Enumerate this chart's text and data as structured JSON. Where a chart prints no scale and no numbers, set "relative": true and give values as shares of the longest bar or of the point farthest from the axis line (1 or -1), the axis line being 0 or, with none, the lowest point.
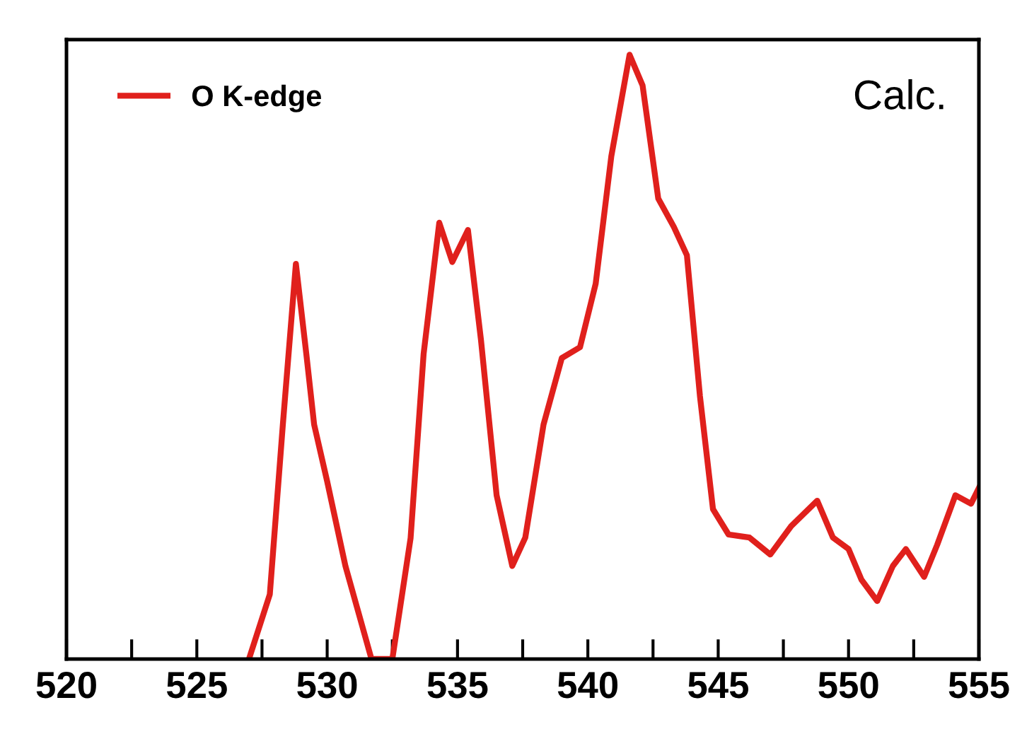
{
  "chart_data": {
    "type": "line",
    "relative": true,
    "xlim": [
      520,
      555
    ],
    "xticks": [
      520,
      {
        "value": 522.5,
        "label": null
      },
      525,
      {
        "value": 527.5,
        "label": null
      },
      530,
      {
        "value": 532.5,
        "label": null
      },
      535,
      {
        "value": 537.5,
        "label": null
      },
      540,
      {
        "value": 542.5,
        "label": null
      },
      545,
      {
        "value": 547.5,
        "label": null
      },
      550,
      {
        "value": 552.5,
        "label": null
      },
      555
    ],
    "tick_labels": "x",
    "legend": "top left",
    "grid": false,
    "annotations": [
      "Calc."
    ],
    "series": [
      {
        "name": "O K-edge",
        "color": "#e0201c",
        "line_style": "solid",
        "x": [
          527,
          527.8,
          528.3,
          528.8,
          529.2,
          529.5,
          530.0,
          530.7,
          531.7,
          532.5,
          533.2,
          533.7,
          534.3,
          534.8,
          535.4,
          535.9,
          536.5,
          537.1,
          537.6,
          538.3,
          539.0,
          539.7,
          540.3,
          540.9,
          541.6,
          542.1,
          542.7,
          543.3,
          543.8,
          544.3,
          544.8,
          545.4,
          546.2,
          547.0,
          547.8,
          548.8,
          549.4,
          550.0,
          550.5,
          551.1,
          551.7,
          552.2,
          552.9,
          553.4,
          554.1,
          554.7,
          555
        ],
        "values": [
          0,
          0.107,
          0.388,
          0.654,
          0.505,
          0.388,
          0.294,
          0.154,
          0,
          0,
          0.2,
          0.505,
          0.722,
          0.657,
          0.71,
          0.528,
          0.271,
          0.154,
          0.201,
          0.388,
          0.498,
          0.516,
          0.621,
          0.832,
          1.0,
          0.949,
          0.762,
          0.715,
          0.668,
          0.435,
          0.248,
          0.206,
          0.201,
          0.173,
          0.22,
          0.262,
          0.201,
          0.182,
          0.131,
          0.096,
          0.154,
          0.182,
          0.136,
          0.189,
          0.271,
          0.257,
          0.283
        ]
      }
    ]
  }
}
